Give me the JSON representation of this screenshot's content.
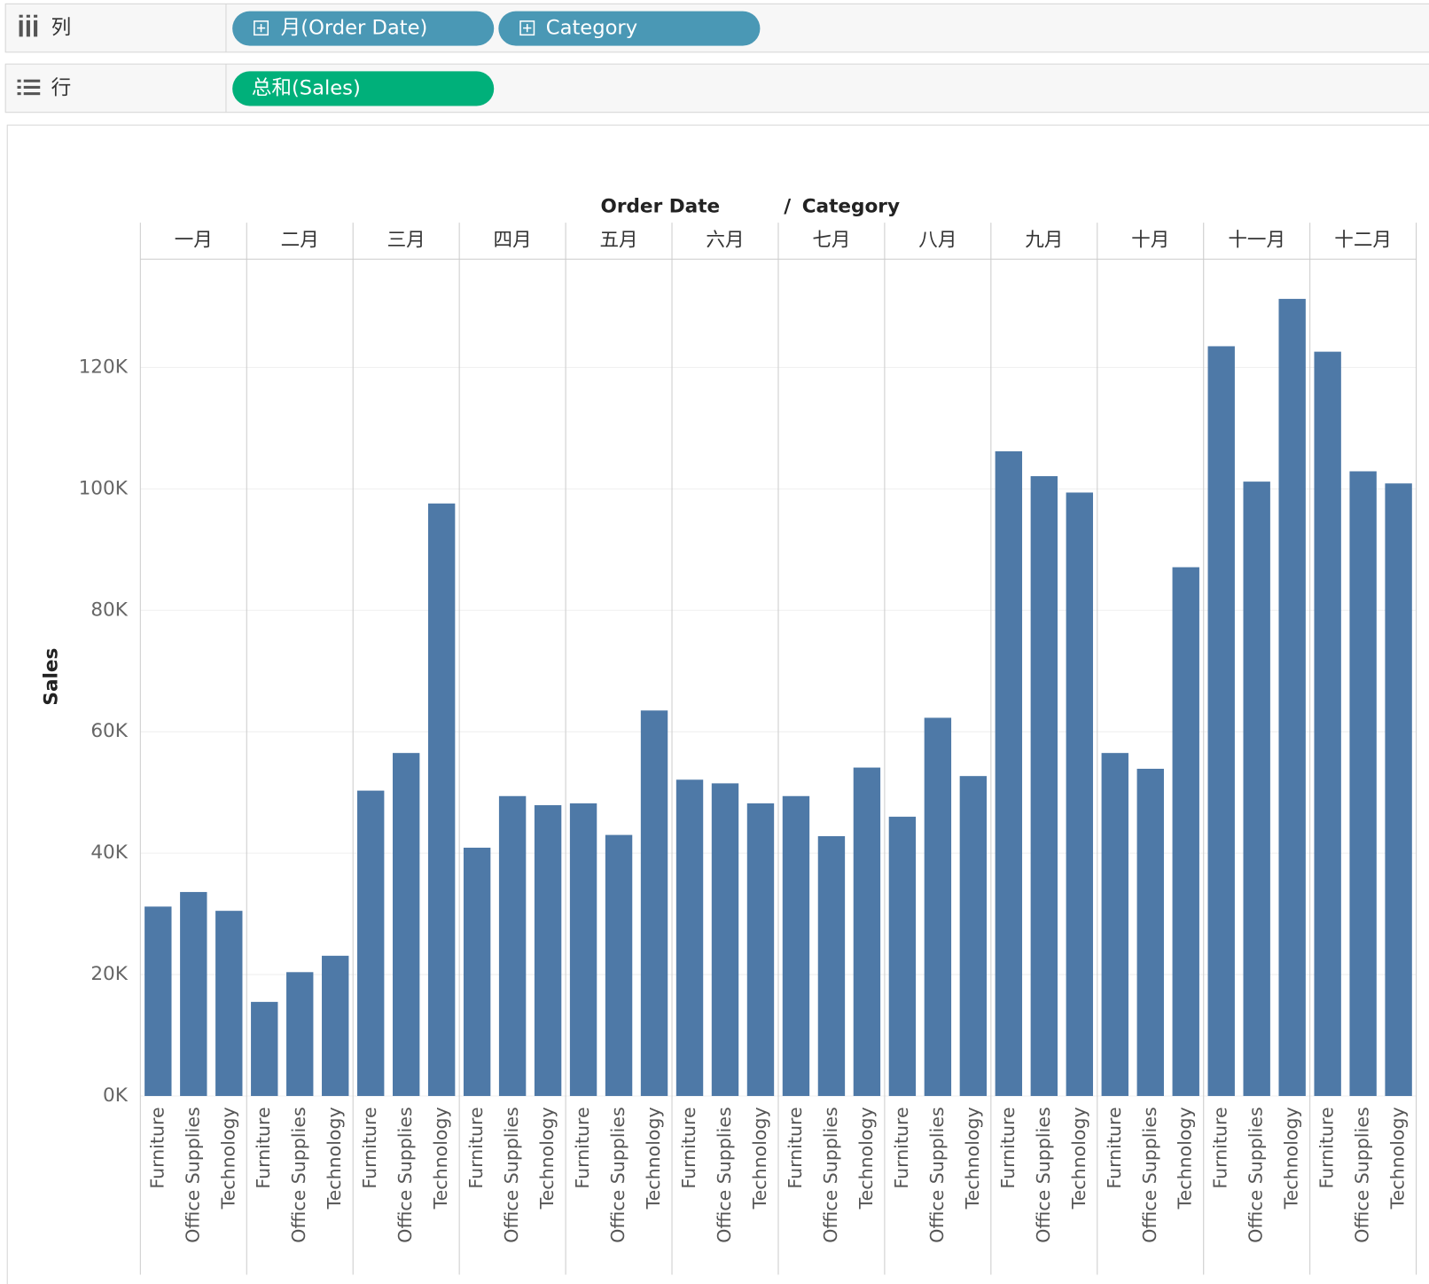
{
  "shelves": {
    "columns": {
      "label": "列",
      "pills": [
        "月(Order Date)",
        "Category"
      ]
    },
    "rows": {
      "label": "行",
      "pills": [
        "总和(Sales)"
      ]
    }
  },
  "chart_data": {
    "type": "bar",
    "x_label_parts": [
      "Order Date",
      "/",
      "Category"
    ],
    "y_label": "Sales",
    "categories": [
      "一月",
      "二月",
      "三月",
      "四月",
      "五月",
      "六月",
      "七月",
      "八月",
      "九月",
      "十月",
      "十一月",
      "十二月"
    ],
    "series": [
      {
        "name": "Furniture",
        "color": "#4e79a7",
        "values": [
          31200,
          15500,
          50300,
          40900,
          48200,
          52100,
          49400,
          46000,
          106200,
          56500,
          123500,
          122600
        ]
      },
      {
        "name": "Office Supplies",
        "color": "#4e79a7",
        "values": [
          33600,
          20400,
          56500,
          49400,
          43000,
          51500,
          42800,
          62300,
          102100,
          53900,
          101200,
          102900
        ]
      },
      {
        "name": "Technology",
        "color": "#4e79a7",
        "values": [
          30500,
          23100,
          97600,
          47900,
          63500,
          48200,
          54100,
          52700,
          99400,
          87100,
          131300,
          100900
        ]
      }
    ],
    "ylim": [
      0,
      137700
    ],
    "yticks": [
      {
        "value": 0,
        "label": "0K"
      },
      {
        "value": 20000,
        "label": "20K"
      },
      {
        "value": 40000,
        "label": "40K"
      },
      {
        "value": 60000,
        "label": "60K"
      },
      {
        "value": 80000,
        "label": "80K"
      },
      {
        "value": 100000,
        "label": "100K"
      },
      {
        "value": 120000,
        "label": "120K"
      }
    ],
    "grid": true
  }
}
